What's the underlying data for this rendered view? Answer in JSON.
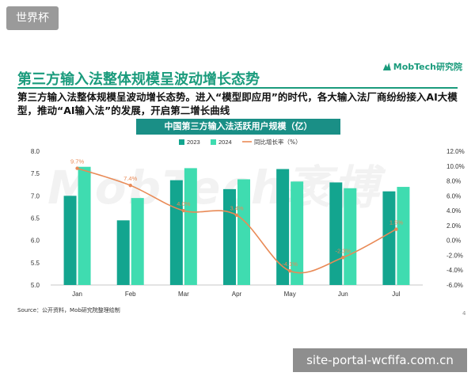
{
  "overlay": {
    "top_left_tag": "世界杯",
    "bottom_right_tag": "site-portal-wcfifa.com.cn"
  },
  "header": {
    "title": "第三方输入法整体规模呈波动增长态势",
    "logo_text": "MobTech研究院",
    "subtitle": "第三方输入法整体规模呈波动增长态势。进入“模型即应用”的时代，各大输入法厂商纷纷接入AI大模型，推动“AI输入法”的发展，开启第二增长曲线"
  },
  "watermark": "MobTech袤博",
  "footer": {
    "source": "Source：公开资料，Mob研究院整理绘制",
    "page_number": "4"
  },
  "colors": {
    "accent": "#1a9b7c",
    "series_2023": "#13a58f",
    "series_2024": "#3fdcb0",
    "series_rate": "#e98a56"
  },
  "chart_data": {
    "type": "bar",
    "title": "中国第三方输入法活跃用户规模（亿）",
    "categories": [
      "Jan",
      "Feb",
      "Mar",
      "Apr",
      "May",
      "Jun",
      "Jul"
    ],
    "series": [
      {
        "name": "2023",
        "type": "bar",
        "axis": "left",
        "values": [
          7.0,
          6.45,
          7.35,
          7.15,
          7.6,
          7.3,
          7.1
        ]
      },
      {
        "name": "2024",
        "type": "bar",
        "axis": "left",
        "values": [
          7.65,
          6.95,
          7.62,
          7.37,
          7.32,
          7.17,
          7.2
        ]
      },
      {
        "name": "同比增长率（%）",
        "type": "line",
        "axis": "right",
        "values": [
          9.7,
          7.4,
          4.0,
          3.4,
          -4.1,
          -2.3,
          1.5
        ],
        "labels": [
          "9.7%",
          "7.4%",
          "4.0%",
          "3.4%",
          "-4.1%",
          "-2.3%",
          "1.5%"
        ]
      }
    ],
    "ylim": [
      5.0,
      8.0
    ],
    "y_ticks": [
      "8.0",
      "7.5",
      "7.0",
      "6.5",
      "6.0",
      "5.5",
      "5.0"
    ],
    "y2lim": [
      -6.0,
      12.0
    ],
    "y2_ticks": [
      "12.0%",
      "10.0%",
      "8.0%",
      "6.0%",
      "4.0%",
      "2.0%",
      "0.0%",
      "-2.0%",
      "-4.0%",
      "-6.0%"
    ],
    "legend_position": "top-center",
    "grid": false
  }
}
